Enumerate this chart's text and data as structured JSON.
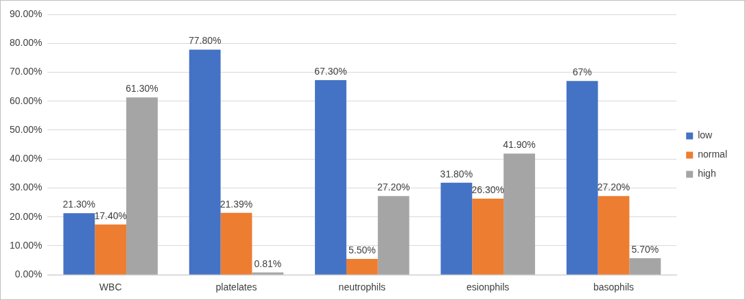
{
  "chart_data": {
    "type": "bar",
    "categories": [
      "WBC",
      "platelates",
      "neutrophils",
      "esionphils",
      "basophils"
    ],
    "series": [
      {
        "name": "low",
        "color": "#4472c4",
        "values": [
          21.3,
          77.8,
          67.3,
          31.8,
          67
        ],
        "value_labels": [
          "21.30%",
          "77.80%",
          "67.30%",
          "31.80%",
          "67%"
        ]
      },
      {
        "name": "normal",
        "color": "#ed7d31",
        "values": [
          17.4,
          21.39,
          5.5,
          26.3,
          27.2
        ],
        "value_labels": [
          "17.40%",
          "21.39%",
          "5.50%",
          "26.30%",
          "27.20%"
        ]
      },
      {
        "name": "high",
        "color": "#a5a5a5",
        "values": [
          61.3,
          0.81,
          27.2,
          41.9,
          5.7
        ],
        "value_labels": [
          "61.30%",
          "0.81%",
          "27.20%",
          "41.90%",
          "5.70%"
        ]
      }
    ],
    "ylim": [
      0,
      90
    ],
    "yticks": [
      {
        "value": 0,
        "label": "0.00%"
      },
      {
        "value": 10,
        "label": "10.00%"
      },
      {
        "value": 20,
        "label": "20.00%"
      },
      {
        "value": 30,
        "label": "30.00%"
      },
      {
        "value": 40,
        "label": "40.00%"
      },
      {
        "value": 50,
        "label": "50.00%"
      },
      {
        "value": 60,
        "label": "60.00%"
      },
      {
        "value": 70,
        "label": "70.00%"
      },
      {
        "value": 80,
        "label": "80.00%"
      },
      {
        "value": 90,
        "label": "90.00%"
      }
    ],
    "grid": "y",
    "legend": "right"
  }
}
